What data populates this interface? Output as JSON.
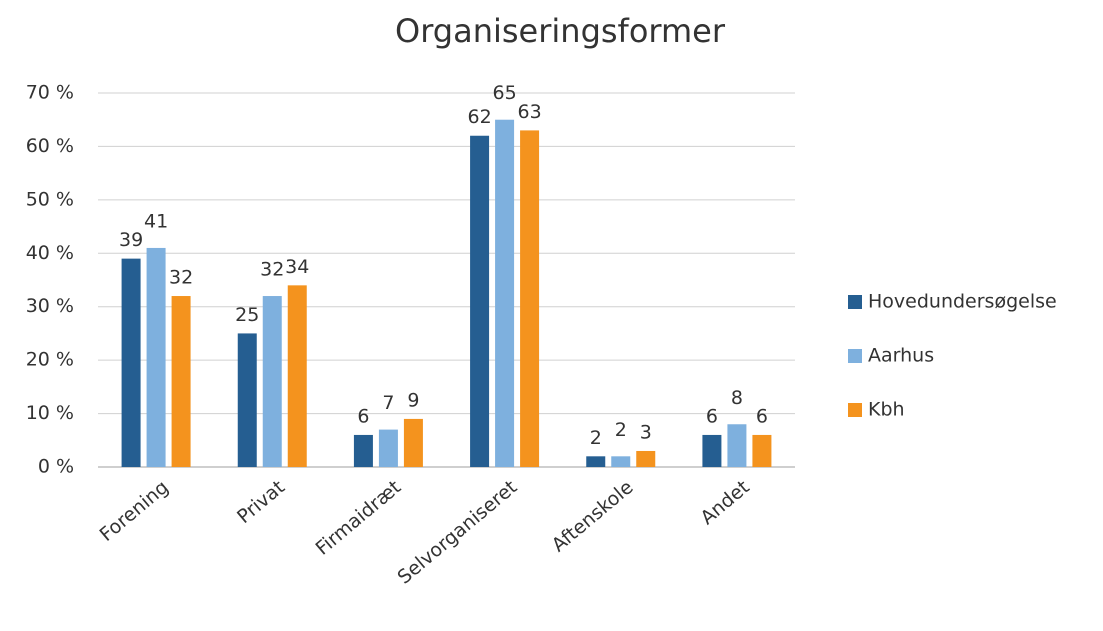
{
  "chart_data": {
    "type": "bar",
    "title": "Organiseringsformer",
    "categories": [
      "Forening",
      "Privat",
      "Firmaidræt",
      "Selvorganiseret",
      "Aftenskole",
      "Andet"
    ],
    "series": [
      {
        "name": "Hovedundersøgelse",
        "color": "#255e91",
        "values": [
          39,
          25,
          6,
          62,
          2,
          6
        ]
      },
      {
        "name": "Aarhus",
        "color": "#7eb0de",
        "values": [
          41,
          32,
          7,
          65,
          2,
          8
        ]
      },
      {
        "name": "Kbh",
        "color": "#f4931e",
        "values": [
          32,
          34,
          9,
          63,
          3,
          6
        ]
      }
    ],
    "ylim": [
      0,
      70
    ],
    "yticks": [
      {
        "value": 0,
        "label": "0 %"
      },
      {
        "value": 10,
        "label": "10 %"
      },
      {
        "value": 20,
        "label": "20 %"
      },
      {
        "value": 30,
        "label": "30 %"
      },
      {
        "value": 40,
        "label": "40 %"
      },
      {
        "value": 50,
        "label": "50 %"
      },
      {
        "value": 60,
        "label": "60 %"
      },
      {
        "value": 70,
        "label": "70 %"
      }
    ],
    "grid": true,
    "legend": "right"
  }
}
